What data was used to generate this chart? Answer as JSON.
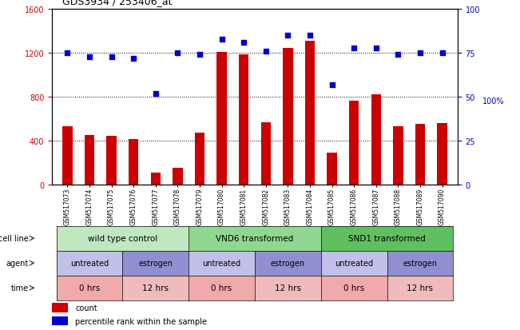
{
  "title": "GDS3934 / 253406_at",
  "categories": [
    "GSM517073",
    "GSM517074",
    "GSM517075",
    "GSM517076",
    "GSM517077",
    "GSM517078",
    "GSM517079",
    "GSM517080",
    "GSM517081",
    "GSM517082",
    "GSM517083",
    "GSM517084",
    "GSM517085",
    "GSM517086",
    "GSM517087",
    "GSM517088",
    "GSM517089",
    "GSM517090"
  ],
  "counts": [
    530,
    450,
    440,
    415,
    110,
    155,
    470,
    1210,
    1190,
    565,
    1245,
    1310,
    290,
    765,
    820,
    530,
    555,
    560
  ],
  "percentiles": [
    75,
    73,
    73,
    72,
    52,
    75,
    74,
    83,
    81,
    76,
    85,
    85,
    57,
    78,
    78,
    74,
    75,
    75
  ],
  "ylim_left": [
    0,
    1600
  ],
  "ylim_right": [
    0,
    100
  ],
  "yticks_left": [
    0,
    400,
    800,
    1200,
    1600
  ],
  "yticks_right": [
    0,
    25,
    50,
    75,
    100
  ],
  "bar_color": "#cc0000",
  "dot_color": "#0000cc",
  "cell_line_groups": [
    {
      "label": "wild type control",
      "start": 0,
      "end": 6,
      "color": "#c0e8c0"
    },
    {
      "label": "VND6 transformed",
      "start": 6,
      "end": 12,
      "color": "#90d890"
    },
    {
      "label": "SND1 transformed",
      "start": 12,
      "end": 18,
      "color": "#60c060"
    }
  ],
  "agent_groups": [
    {
      "label": "untreated",
      "start": 0,
      "end": 3,
      "color": "#c0c0e8"
    },
    {
      "label": "estrogen",
      "start": 3,
      "end": 6,
      "color": "#9090d0"
    },
    {
      "label": "untreated",
      "start": 6,
      "end": 9,
      "color": "#c0c0e8"
    },
    {
      "label": "estrogen",
      "start": 9,
      "end": 12,
      "color": "#9090d0"
    },
    {
      "label": "untreated",
      "start": 12,
      "end": 15,
      "color": "#c0c0e8"
    },
    {
      "label": "estrogen",
      "start": 15,
      "end": 18,
      "color": "#9090d0"
    }
  ],
  "time_groups": [
    {
      "label": "0 hrs",
      "start": 0,
      "end": 3,
      "color": "#f0aaaa"
    },
    {
      "label": "12 hrs",
      "start": 3,
      "end": 6,
      "color": "#f0bbbb"
    },
    {
      "label": "0 hrs",
      "start": 6,
      "end": 9,
      "color": "#f0aaaa"
    },
    {
      "label": "12 hrs",
      "start": 9,
      "end": 12,
      "color": "#f0bbbb"
    },
    {
      "label": "0 hrs",
      "start": 12,
      "end": 15,
      "color": "#f0aaaa"
    },
    {
      "label": "12 hrs",
      "start": 15,
      "end": 18,
      "color": "#f0bbbb"
    }
  ],
  "legend_count_color": "#cc0000",
  "legend_dot_color": "#0000cc",
  "chart_bg": "#ffffff",
  "fig_bg": "#ffffff",
  "row_labels": [
    "cell line",
    "agent",
    "time"
  ],
  "right_ylabel": "100%"
}
